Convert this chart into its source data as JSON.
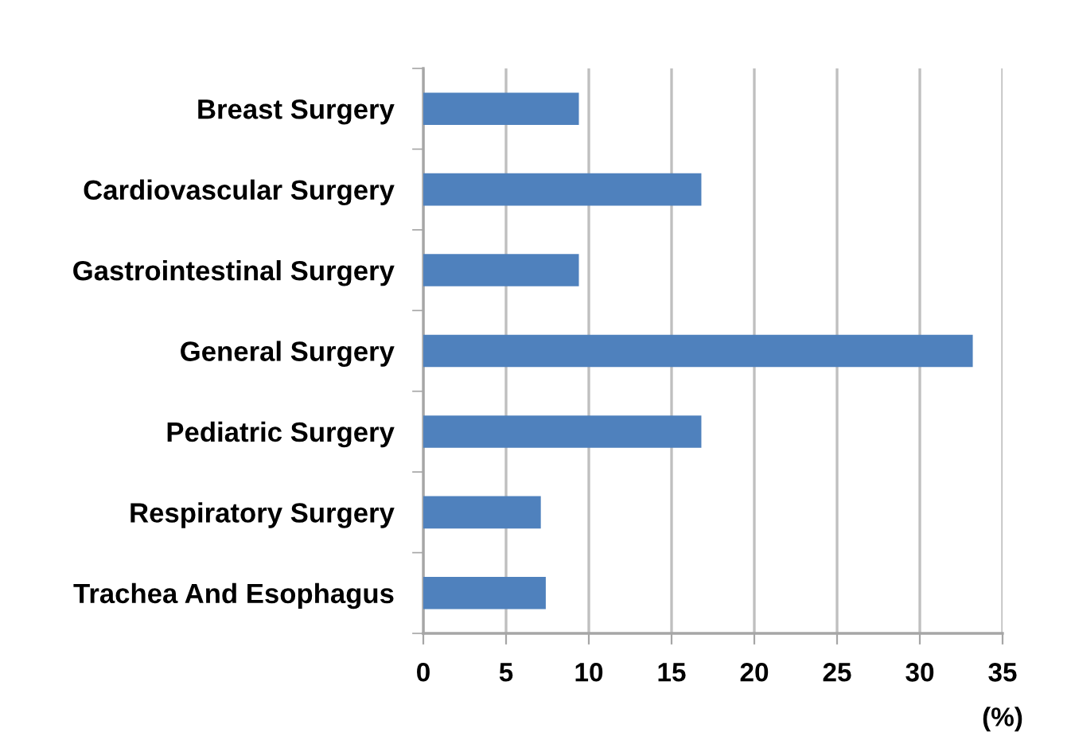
{
  "chart_data": {
    "type": "bar",
    "orientation": "horizontal",
    "categories": [
      "Breast Surgery",
      "Cardiovascular Surgery",
      "Gastrointestinal Surgery",
      "General Surgery",
      "Pediatric Surgery",
      "Respiratory Surgery",
      "Trachea And Esophagus"
    ],
    "values": [
      9.4,
      16.8,
      9.4,
      33.2,
      16.8,
      7.1,
      7.4
    ],
    "color": "#4f81bd",
    "xlabel": "(%)",
    "xlim": [
      0,
      35
    ],
    "xticks": [
      0,
      5,
      10,
      15,
      20,
      25,
      30,
      35
    ],
    "grid": "x",
    "legend": false
  }
}
